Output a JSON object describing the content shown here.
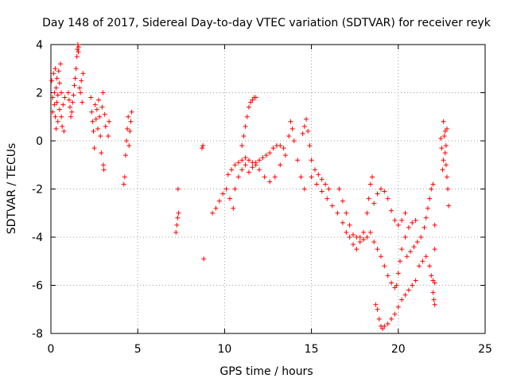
{
  "chart_data": {
    "type": "scatter",
    "title": "Day 148 of 2017, Sidereal Day-to-day VTEC variation (SDTVAR) for receiver reyk",
    "xlabel": "GPS time / hours",
    "ylabel": "SDTVAR / TECUs",
    "xlim": [
      0,
      25
    ],
    "ylim": [
      -8,
      4
    ],
    "xticks": [
      "0",
      "5",
      "10",
      "15",
      "20",
      "25"
    ],
    "yticks": [
      "4",
      "2",
      "0",
      "-2",
      "-4",
      "-6",
      "-8"
    ],
    "grid": true,
    "marker": "plus",
    "color": "#ff0000",
    "series": [
      {
        "name": "reyk",
        "points": [
          [
            0.05,
            2.5
          ],
          [
            0.1,
            1.8
          ],
          [
            0.1,
            1.2
          ],
          [
            0.15,
            2.8
          ],
          [
            0.2,
            2.0
          ],
          [
            0.2,
            1.5
          ],
          [
            0.25,
            1.0
          ],
          [
            0.25,
            3.0
          ],
          [
            0.3,
            2.2
          ],
          [
            0.3,
            0.5
          ],
          [
            0.35,
            1.6
          ],
          [
            0.35,
            2.6
          ],
          [
            0.4,
            0.8
          ],
          [
            0.4,
            1.9
          ],
          [
            0.45,
            2.9
          ],
          [
            0.5,
            1.3
          ],
          [
            0.5,
            2.4
          ],
          [
            0.55,
            3.2
          ],
          [
            0.6,
            1.0
          ],
          [
            0.6,
            2.0
          ],
          [
            0.65,
            0.6
          ],
          [
            0.7,
            1.5
          ],
          [
            0.75,
            0.4
          ],
          [
            0.8,
            1.8
          ],
          [
            1.0,
            2.0
          ],
          [
            1.05,
            1.7
          ],
          [
            1.1,
            1.4
          ],
          [
            1.15,
            1.0
          ],
          [
            1.2,
            1.2
          ],
          [
            1.25,
            1.6
          ],
          [
            1.3,
            1.9
          ],
          [
            1.35,
            2.3
          ],
          [
            1.4,
            2.6
          ],
          [
            1.45,
            3.0
          ],
          [
            1.5,
            3.5
          ],
          [
            1.52,
            3.8
          ],
          [
            1.55,
            4.0
          ],
          [
            1.58,
            3.7
          ],
          [
            1.6,
            3.9
          ],
          [
            1.65,
            2.2
          ],
          [
            1.7,
            2.0
          ],
          [
            1.75,
            2.5
          ],
          [
            1.8,
            1.6
          ],
          [
            1.85,
            2.8
          ],
          [
            2.3,
            1.8
          ],
          [
            2.35,
            1.2
          ],
          [
            2.4,
            0.8
          ],
          [
            2.45,
            0.4
          ],
          [
            2.5,
            -0.3
          ],
          [
            2.55,
            1.5
          ],
          [
            2.6,
            0.9
          ],
          [
            2.65,
            1.3
          ],
          [
            2.7,
            0.5
          ],
          [
            2.75,
            1.7
          ],
          [
            2.8,
            1.0
          ],
          [
            2.85,
            0.2
          ],
          [
            2.9,
            -0.5
          ],
          [
            2.95,
            1.4
          ],
          [
            3.0,
            2.0
          ],
          [
            3.02,
            -1.0
          ],
          [
            3.05,
            -1.2
          ],
          [
            3.1,
            1.1
          ],
          [
            3.15,
            0.6
          ],
          [
            3.3,
            0.2
          ],
          [
            3.35,
            0.8
          ],
          [
            4.2,
            -1.8
          ],
          [
            4.25,
            -1.5
          ],
          [
            4.3,
            -0.6
          ],
          [
            4.35,
            0.0
          ],
          [
            4.4,
            0.5
          ],
          [
            4.45,
            1.0
          ],
          [
            4.5,
            -0.2
          ],
          [
            4.55,
            0.4
          ],
          [
            4.6,
            0.8
          ],
          [
            4.65,
            1.2
          ],
          [
            7.2,
            -3.8
          ],
          [
            7.25,
            -3.5
          ],
          [
            7.3,
            -3.2
          ],
          [
            7.32,
            -2.0
          ],
          [
            7.35,
            -3.0
          ],
          [
            8.7,
            -0.3
          ],
          [
            8.75,
            -0.2
          ],
          [
            8.8,
            -4.9
          ],
          [
            9.3,
            -3.0
          ],
          [
            9.5,
            -2.8
          ],
          [
            9.7,
            -2.5
          ],
          [
            9.9,
            -2.2
          ],
          [
            10.1,
            -2.0
          ],
          [
            10.3,
            -2.4
          ],
          [
            10.5,
            -2.8
          ],
          [
            10.6,
            -2.0
          ],
          [
            10.8,
            -1.5
          ],
          [
            11.0,
            -1.2
          ],
          [
            11.2,
            -1.0
          ],
          [
            11.4,
            -1.3
          ],
          [
            11.6,
            -1.1
          ],
          [
            11.8,
            -0.9
          ],
          [
            12.0,
            -0.8
          ],
          [
            12.2,
            -0.7
          ],
          [
            12.4,
            -0.6
          ],
          [
            12.6,
            -0.5
          ],
          [
            12.8,
            -0.3
          ],
          [
            13.0,
            -0.2
          ],
          [
            13.2,
            -0.2
          ],
          [
            13.4,
            -0.3
          ],
          [
            10.2,
            -1.4
          ],
          [
            10.4,
            -1.2
          ],
          [
            10.6,
            -1.0
          ],
          [
            10.8,
            -0.9
          ],
          [
            11.0,
            -0.8
          ],
          [
            11.2,
            -0.7
          ],
          [
            11.4,
            -0.8
          ],
          [
            11.6,
            -0.9
          ],
          [
            11.8,
            -1.0
          ],
          [
            11.0,
            -0.2
          ],
          [
            11.1,
            0.2
          ],
          [
            11.2,
            0.6
          ],
          [
            11.3,
            1.0
          ],
          [
            11.4,
            1.4
          ],
          [
            11.5,
            1.6
          ],
          [
            11.6,
            1.7
          ],
          [
            11.7,
            1.8
          ],
          [
            11.8,
            1.8
          ],
          [
            12.0,
            -1.2
          ],
          [
            12.3,
            -1.5
          ],
          [
            12.6,
            -1.7
          ],
          [
            12.9,
            -1.5
          ],
          [
            13.2,
            -1.0
          ],
          [
            13.5,
            -0.6
          ],
          [
            13.7,
            0.2
          ],
          [
            13.8,
            0.8
          ],
          [
            13.9,
            0.5
          ],
          [
            14.0,
            0.0
          ],
          [
            14.2,
            -0.8
          ],
          [
            14.4,
            -1.5
          ],
          [
            14.6,
            -2.0
          ],
          [
            14.5,
            0.3
          ],
          [
            14.6,
            0.6
          ],
          [
            14.7,
            0.9
          ],
          [
            14.8,
            0.4
          ],
          [
            14.9,
            -0.2
          ],
          [
            15.0,
            -0.8
          ],
          [
            15.2,
            -1.2
          ],
          [
            15.4,
            -1.4
          ],
          [
            15.6,
            -1.6
          ],
          [
            15.8,
            -1.8
          ],
          [
            16.0,
            -2.0
          ],
          [
            15.0,
            -1.5
          ],
          [
            15.3,
            -1.8
          ],
          [
            15.6,
            -2.1
          ],
          [
            15.9,
            -2.4
          ],
          [
            16.2,
            -2.7
          ],
          [
            16.5,
            -3.0
          ],
          [
            16.8,
            -3.4
          ],
          [
            17.0,
            -3.8
          ],
          [
            17.2,
            -4.0
          ],
          [
            17.4,
            -3.9
          ],
          [
            17.6,
            -4.0
          ],
          [
            17.8,
            -4.0
          ],
          [
            18.0,
            -4.1
          ],
          [
            18.2,
            -4.0
          ],
          [
            18.4,
            -3.8
          ],
          [
            16.6,
            -2.0
          ],
          [
            16.8,
            -2.5
          ],
          [
            17.0,
            -3.0
          ],
          [
            17.2,
            -3.5
          ],
          [
            17.4,
            -4.3
          ],
          [
            17.6,
            -4.5
          ],
          [
            17.8,
            -4.2
          ],
          [
            18.0,
            -3.8
          ],
          [
            18.2,
            -3.0
          ],
          [
            18.3,
            -2.4
          ],
          [
            18.4,
            -1.8
          ],
          [
            18.5,
            -1.5
          ],
          [
            18.6,
            -4.2
          ],
          [
            18.8,
            -4.5
          ],
          [
            19.0,
            -4.8
          ],
          [
            19.2,
            -5.2
          ],
          [
            19.4,
            -5.6
          ],
          [
            19.6,
            -5.9
          ],
          [
            19.8,
            -6.1
          ],
          [
            19.9,
            -6.0
          ],
          [
            20.0,
            -5.5
          ],
          [
            20.1,
            -5.0
          ],
          [
            20.2,
            -4.5
          ],
          [
            20.4,
            -4.0
          ],
          [
            20.6,
            -3.6
          ],
          [
            20.8,
            -3.4
          ],
          [
            21.0,
            -3.3
          ],
          [
            18.7,
            -6.8
          ],
          [
            18.8,
            -7.0
          ],
          [
            18.9,
            -7.4
          ],
          [
            19.0,
            -7.7
          ],
          [
            19.1,
            -7.8
          ],
          [
            19.2,
            -7.7
          ],
          [
            19.4,
            -7.6
          ],
          [
            19.6,
            -7.4
          ],
          [
            19.8,
            -7.2
          ],
          [
            20.0,
            -6.9
          ],
          [
            20.2,
            -6.6
          ],
          [
            20.4,
            -6.4
          ],
          [
            20.6,
            -6.2
          ],
          [
            20.8,
            -6.0
          ],
          [
            21.0,
            -5.8
          ],
          [
            18.6,
            -2.6
          ],
          [
            18.8,
            -2.2
          ],
          [
            19.0,
            -2.0
          ],
          [
            19.2,
            -2.1
          ],
          [
            19.4,
            -2.4
          ],
          [
            19.6,
            -2.9
          ],
          [
            19.8,
            -3.3
          ],
          [
            20.0,
            -3.5
          ],
          [
            20.2,
            -3.3
          ],
          [
            20.4,
            -3.0
          ],
          [
            20.5,
            -4.8
          ],
          [
            20.7,
            -4.6
          ],
          [
            20.9,
            -4.4
          ],
          [
            21.1,
            -4.2
          ],
          [
            21.3,
            -4.0
          ],
          [
            21.5,
            -3.6
          ],
          [
            21.6,
            -3.2
          ],
          [
            21.7,
            -2.8
          ],
          [
            21.8,
            -2.4
          ],
          [
            21.9,
            -2.0
          ],
          [
            22.0,
            -1.8
          ],
          [
            21.2,
            -5.2
          ],
          [
            21.4,
            -5.0
          ],
          [
            21.6,
            -4.8
          ],
          [
            21.8,
            -5.2
          ],
          [
            21.9,
            -5.6
          ],
          [
            22.0,
            -5.8
          ],
          [
            22.0,
            -6.3
          ],
          [
            22.05,
            -6.6
          ],
          [
            22.1,
            -6.8
          ],
          [
            22.1,
            -5.9
          ],
          [
            22.1,
            -4.5
          ],
          [
            22.1,
            -3.5
          ],
          [
            22.6,
            0.8
          ],
          [
            22.65,
            0.2
          ],
          [
            22.7,
            -0.5
          ],
          [
            22.75,
            -1.0
          ],
          [
            22.8,
            -1.5
          ],
          [
            22.85,
            -2.0
          ],
          [
            22.9,
            -2.7
          ],
          [
            22.8,
            0.5
          ],
          [
            22.75,
            -0.2
          ],
          [
            22.7,
            0.4
          ],
          [
            22.6,
            -0.8
          ],
          [
            22.55,
            -1.2
          ],
          [
            22.5,
            -0.3
          ],
          [
            22.45,
            0.1
          ]
        ]
      }
    ]
  }
}
